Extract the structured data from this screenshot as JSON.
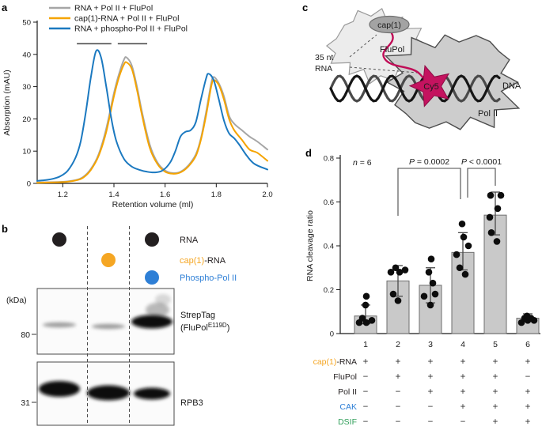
{
  "panels": {
    "a": "a",
    "b": "b",
    "c": "c",
    "d": "d"
  },
  "chart_data": [
    {
      "id": "panel_a",
      "type": "line",
      "xlabel": "Retention volume (ml)",
      "ylabel": "Absorption (mAU)",
      "xlim": [
        1.1,
        2.0
      ],
      "ylim": [
        0,
        50
      ],
      "xticks": [
        1.2,
        1.4,
        1.6,
        1.8,
        2.0
      ],
      "yticks": [
        0,
        10,
        20,
        30,
        40,
        50
      ],
      "grid": false,
      "legend_position": "top-left",
      "series": [
        {
          "name": "RNA + Pol II + FluPol",
          "color": "#a6a6a6",
          "x": [
            1.1,
            1.2,
            1.25,
            1.28,
            1.31,
            1.34,
            1.37,
            1.4,
            1.42,
            1.44,
            1.45,
            1.47,
            1.49,
            1.51,
            1.54,
            1.57,
            1.6,
            1.63,
            1.66,
            1.69,
            1.72,
            1.74,
            1.76,
            1.78,
            1.79,
            1.81,
            1.83,
            1.85,
            1.87,
            1.9,
            1.93,
            1.96,
            2.0
          ],
          "y": [
            0.3,
            0.5,
            1.0,
            2.0,
            4.5,
            9,
            17,
            28,
            34,
            38.5,
            39,
            36.5,
            30,
            22,
            12,
            6.5,
            4,
            3.2,
            3.6,
            5.5,
            9,
            14,
            22,
            31,
            33,
            31,
            27,
            21,
            18.5,
            16.5,
            14.5,
            13,
            10.5
          ]
        },
        {
          "name": "cap(1)-RNA + Pol II + FluPol",
          "color": "#f5a400",
          "x": [
            1.1,
            1.2,
            1.25,
            1.28,
            1.31,
            1.34,
            1.37,
            1.4,
            1.42,
            1.44,
            1.45,
            1.47,
            1.49,
            1.51,
            1.54,
            1.57,
            1.6,
            1.63,
            1.66,
            1.69,
            1.72,
            1.74,
            1.76,
            1.78,
            1.79,
            1.81,
            1.83,
            1.85,
            1.87,
            1.9,
            1.93,
            1.96,
            2.0
          ],
          "y": [
            0.2,
            0.4,
            0.9,
            1.8,
            4.2,
            8.5,
            16,
            27,
            33,
            37,
            37.5,
            35.5,
            29,
            21,
            11,
            6,
            3.6,
            3.0,
            3.4,
            5.2,
            8.5,
            13.5,
            21,
            30,
            32,
            30.5,
            26,
            20,
            16.5,
            13.5,
            10.5,
            9.5,
            7
          ]
        },
        {
          "name": "RNA + phospho-Pol II + FluPol",
          "color": "#1b79c0",
          "x": [
            1.1,
            1.13,
            1.16,
            1.19,
            1.22,
            1.25,
            1.27,
            1.29,
            1.31,
            1.33,
            1.35,
            1.37,
            1.39,
            1.41,
            1.44,
            1.47,
            1.5,
            1.53,
            1.56,
            1.59,
            1.62,
            1.64,
            1.66,
            1.68,
            1.7,
            1.72,
            1.74,
            1.76,
            1.77,
            1.79,
            1.81,
            1.83,
            1.85,
            1.87,
            1.89,
            1.92,
            1.95,
            2.0
          ],
          "y": [
            0.8,
            1.0,
            1.4,
            2.2,
            4,
            8,
            13,
            22,
            33,
            41,
            39,
            30,
            20,
            13,
            7.5,
            5.2,
            4.2,
            3.6,
            3.4,
            4,
            6.5,
            10,
            14.5,
            16,
            16.5,
            19,
            26,
            32.5,
            34,
            32,
            26,
            19.5,
            15.5,
            14,
            12,
            8.5,
            6,
            4.3
          ]
        }
      ],
      "annotations": {
        "fraction_bar_y": 43.3,
        "fraction_bars": [
          [
            1.255,
            1.39
          ],
          [
            1.415,
            1.53
          ]
        ]
      }
    },
    {
      "id": "panel_d",
      "type": "bar",
      "ylabel": "RNA cleavage ratio",
      "ylim": [
        0,
        0.8
      ],
      "yticks": [
        0,
        0.2,
        0.4,
        0.6,
        0.8
      ],
      "categories": [
        "1",
        "2",
        "3",
        "4",
        "5",
        "6"
      ],
      "values": [
        0.08,
        0.24,
        0.22,
        0.37,
        0.54,
        0.07
      ],
      "error_low": [
        0.045,
        0.17,
        0.14,
        0.29,
        0.45,
        0.055
      ],
      "error_high": [
        0.13,
        0.31,
        0.3,
        0.46,
        0.645,
        0.09
      ],
      "points": [
        [
          0.05,
          0.05,
          0.06,
          0.07,
          0.13,
          0.17
        ],
        [
          0.15,
          0.18,
          0.28,
          0.28,
          0.29,
          0.3
        ],
        [
          0.13,
          0.17,
          0.18,
          0.23,
          0.28,
          0.34
        ],
        [
          0.27,
          0.3,
          0.36,
          0.4,
          0.44,
          0.5
        ],
        [
          0.42,
          0.46,
          0.53,
          0.57,
          0.63,
          0.63
        ],
        [
          0.05,
          0.06,
          0.06,
          0.07,
          0.07,
          0.08
        ]
      ],
      "bar_color": "#c9c9c9",
      "bar_edge": "#6e6e6e",
      "point_color": "#0d0d0d",
      "n_label": "n = 6",
      "comparisons": [
        {
          "label": "P = 0.0002",
          "from": 2,
          "to": 4
        },
        {
          "label": "P < 0.0001",
          "from": 4,
          "to": 5
        }
      ],
      "conditions": {
        "rows": [
          {
            "parts": [
              {
                "text": "cap(1)",
                "color": "#f5a623"
              },
              {
                "text": "-RNA",
                "color": "#231f20"
              }
            ],
            "values": [
              "+",
              "+",
              "+",
              "+",
              "+",
              "+"
            ]
          },
          {
            "parts": [
              {
                "text": "FluPol",
                "color": "#231f20"
              }
            ],
            "values": [
              "−",
              "+",
              "+",
              "+",
              "+",
              "−"
            ]
          },
          {
            "parts": [
              {
                "text": "Pol II",
                "color": "#231f20"
              }
            ],
            "values": [
              "−",
              "−",
              "+",
              "+",
              "+",
              "+"
            ]
          },
          {
            "parts": [
              {
                "text": "CAK",
                "color": "#2e7fd6"
              }
            ],
            "values": [
              "−",
              "−",
              "−",
              "+",
              "+",
              "+"
            ]
          },
          {
            "parts": [
              {
                "text": "DSIF",
                "color": "#33a05c"
              }
            ],
            "values": [
              "−",
              "−",
              "−",
              "−",
              "+",
              "+"
            ]
          }
        ]
      }
    }
  ],
  "panel_b": {
    "kda_label": "(kDa)",
    "markers": [
      "80",
      "31"
    ],
    "lane_dots": [
      [
        {
          "row": 0,
          "color": "#231f20",
          "sample": "RNA"
        }
      ],
      [
        {
          "row": 1,
          "color": "#f5a623",
          "sample": "cap(1)-RNA"
        }
      ],
      [
        {
          "row": 0,
          "color": "#231f20",
          "sample": "RNA"
        },
        {
          "row": 2,
          "color": "#2e7fd6",
          "sample": "Phospho-Pol II"
        }
      ]
    ],
    "legend": [
      {
        "parts": [
          {
            "text": "RNA",
            "color": "#231f20"
          }
        ]
      },
      {
        "parts": [
          {
            "text": "cap(1)",
            "color": "#f5a623"
          },
          {
            "text": "-RNA",
            "color": "#231f20"
          }
        ]
      },
      {
        "parts": [
          {
            "text": "Phospho-Pol II",
            "color": "#2e7fd6"
          }
        ]
      }
    ],
    "blots": [
      {
        "label_line1": "StrepTag",
        "label_line2_pre": "(FluPol",
        "label_sup": "E119D",
        "label_line2_post": ")",
        "marker": "80",
        "bands": [
          {
            "lane": 1,
            "intensity": "faint"
          },
          {
            "lane": 2,
            "intensity": "faint"
          },
          {
            "lane": 3,
            "intensity": "strong"
          }
        ]
      },
      {
        "label_line1": "RPB3",
        "marker": "31",
        "bands": [
          {
            "lane": 1,
            "intensity": "strong"
          },
          {
            "lane": 2,
            "intensity": "strong"
          },
          {
            "lane": 3,
            "intensity": "strong"
          }
        ]
      }
    ]
  },
  "panel_c": {
    "labels": {
      "rna_line1": "35 nt",
      "rna_line2": "RNA",
      "flupol": "FluPol",
      "polii": "Pol II",
      "dna": "DNA",
      "cap": "cap(1)",
      "cy5": "Cy5"
    },
    "colors": {
      "rna": "#c00c56",
      "star_fill": "#c4135f",
      "star_edge": "#8e0a44",
      "star_text": "#efb3cd",
      "flupol_fill": "#ececec",
      "flupol_edge": "#9a9a9a",
      "polii_fill": "#cdcdcd",
      "polii_edge": "#4d4d4d",
      "cap_fill": "#a3a3a3",
      "cap_edge": "#707070",
      "dna_front": "#161616",
      "dna_back": "#4a4a4a"
    }
  }
}
